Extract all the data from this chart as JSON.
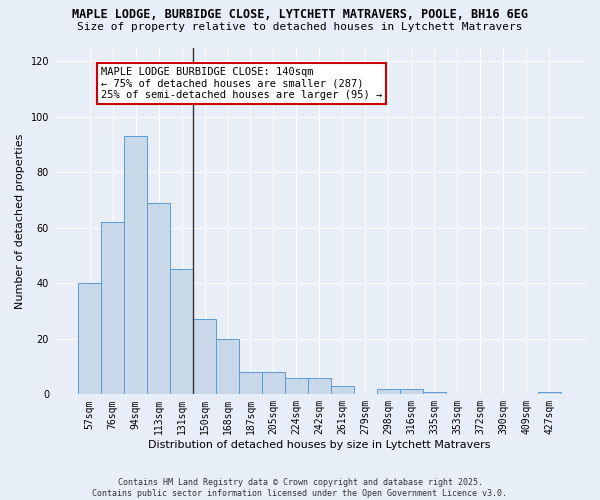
{
  "title": "MAPLE LODGE, BURBIDGE CLOSE, LYTCHETT MATRAVERS, POOLE, BH16 6EG",
  "subtitle": "Size of property relative to detached houses in Lytchett Matravers",
  "xlabel": "Distribution of detached houses by size in Lytchett Matravers",
  "ylabel": "Number of detached properties",
  "categories": [
    "57sqm",
    "76sqm",
    "94sqm",
    "113sqm",
    "131sqm",
    "150sqm",
    "168sqm",
    "187sqm",
    "205sqm",
    "224sqm",
    "242sqm",
    "261sqm",
    "279sqm",
    "298sqm",
    "316sqm",
    "335sqm",
    "353sqm",
    "372sqm",
    "390sqm",
    "409sqm",
    "427sqm"
  ],
  "values": [
    40,
    62,
    93,
    69,
    45,
    27,
    20,
    8,
    8,
    6,
    6,
    3,
    0,
    2,
    2,
    1,
    0,
    0,
    0,
    0,
    1
  ],
  "bar_color": "#c8d8e8",
  "bar_edge_color": "#5b9bd5",
  "vline_color": "#333333",
  "annotation_text": "MAPLE LODGE BURBIDGE CLOSE: 140sqm\n← 75% of detached houses are smaller (287)\n25% of semi-detached houses are larger (95) →",
  "annotation_box_color": "#ffffff",
  "annotation_box_edge": "#cc0000",
  "ylim": [
    0,
    125
  ],
  "yticks": [
    0,
    20,
    40,
    60,
    80,
    100,
    120
  ],
  "bg_color": "#e8eef8",
  "grid_color": "#ffffff",
  "footer": "Contains HM Land Registry data © Crown copyright and database right 2025.\nContains public sector information licensed under the Open Government Licence v3.0.",
  "title_fontsize": 8.5,
  "subtitle_fontsize": 8.0,
  "tick_fontsize": 7.0,
  "axis_label_fontsize": 8.0,
  "annotation_fontsize": 7.5,
  "footer_fontsize": 6.0
}
